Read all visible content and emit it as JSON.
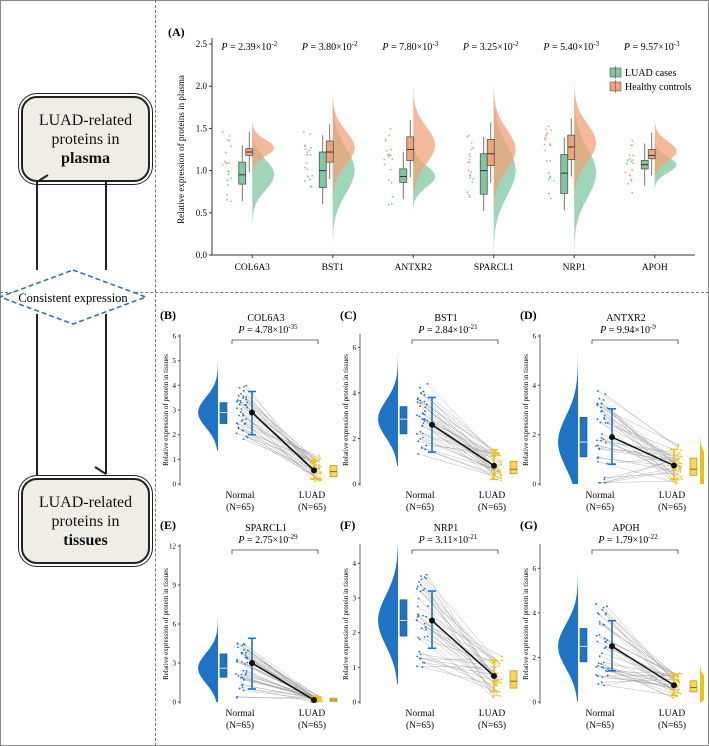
{
  "flow": {
    "plasma_box": {
      "line1": "LUAD-related",
      "line2": "proteins in",
      "bold": "plasma"
    },
    "tissue_box": {
      "line1": "LUAD-related",
      "line2": "proteins in",
      "bold": "tissues"
    },
    "diamond_label": "Consistent expression"
  },
  "colors": {
    "luad_green": "#7fc7a2",
    "healthy_orange": "#f0a27a",
    "normal_blue": "#1f73c4",
    "luad_yellow": "#f2c10f",
    "line_gray": "#9a9a9a"
  },
  "chart_data": [
    {
      "panel": "(A)",
      "type": "raincloud",
      "ylabel": "Relative  expression  of  proteins in plasma",
      "ylim": [
        0,
        2.5
      ],
      "yticks": [
        "0.0",
        "0.5",
        "1.0",
        "1.5",
        "2.0",
        "2.5"
      ],
      "categories": [
        "COL6A3",
        "BST1",
        "ANTXR2",
        "SPARCL1",
        "NRP1",
        "APOH"
      ],
      "pvalues": [
        {
          "base": "2.39",
          "exp": "-2"
        },
        {
          "base": "3.80",
          "exp": "-2"
        },
        {
          "base": "7.80",
          "exp": "-3"
        },
        {
          "base": "3.25",
          "exp": "-2"
        },
        {
          "base": "5.40",
          "exp": "-3"
        },
        {
          "base": "9.57",
          "exp": "-3"
        }
      ],
      "series": [
        {
          "name": "LUAD cases",
          "median": [
            0.95,
            1.0,
            0.93,
            1.0,
            0.97,
            1.07
          ],
          "q1": [
            0.84,
            0.8,
            0.86,
            0.72,
            0.73,
            1.02
          ],
          "q3": [
            1.1,
            1.22,
            1.02,
            1.2,
            1.19,
            1.12
          ]
        },
        {
          "name": "Healthy controls",
          "median": [
            1.22,
            1.22,
            1.25,
            1.2,
            1.28,
            1.18
          ],
          "q1": [
            1.18,
            1.1,
            1.12,
            1.06,
            1.13,
            1.14
          ],
          "q3": [
            1.26,
            1.35,
            1.4,
            1.37,
            1.42,
            1.25
          ]
        }
      ],
      "legend": "top-right"
    },
    {
      "panel": "(B)",
      "type": "paired-raincloud",
      "title": "COL6A3",
      "p": {
        "base": "4.78",
        "exp": "-35"
      },
      "ylabel": "Relative  expression  of  protein in tissues",
      "ylim": [
        0,
        6
      ],
      "yticks": [
        "0",
        "1",
        "2",
        "3",
        "4",
        "5",
        "6"
      ],
      "groups": [
        {
          "name": "Normal",
          "n": "(N=65)",
          "median": 2.9,
          "q1": 2.45,
          "q3": 3.3,
          "mean": 2.9,
          "sd_low": 2.0,
          "sd_high": 3.75
        },
        {
          "name": "LUAD",
          "n": "(N=65)",
          "median": 0.5,
          "q1": 0.3,
          "q3": 0.75,
          "mean": 0.55,
          "sd_low": 0.2,
          "sd_high": 0.95
        }
      ]
    },
    {
      "panel": "(C)",
      "type": "paired-raincloud",
      "title": "BST1",
      "p": {
        "base": "2.84",
        "exp": "-21"
      },
      "ylabel": "Relative  expression  of  protein in tissues",
      "ylim": [
        0,
        6.5
      ],
      "yticks": [
        "0",
        "2",
        "4",
        "6"
      ],
      "groups": [
        {
          "name": "Normal",
          "n": "(N=65)",
          "median": 2.85,
          "q1": 2.2,
          "q3": 3.4,
          "mean": 2.6,
          "sd_low": 1.4,
          "sd_high": 3.8
        },
        {
          "name": "LUAD",
          "n": "(N=65)",
          "median": 0.65,
          "q1": 0.45,
          "q3": 1.0,
          "mean": 0.8,
          "sd_low": 0.2,
          "sd_high": 1.5
        }
      ]
    },
    {
      "panel": "(D)",
      "type": "paired-raincloud",
      "title": "ANTXR2",
      "p": {
        "base": "9.94",
        "exp": "-9"
      },
      "ylabel": "Relative  expression  of  protein in tissues",
      "ylim": [
        0,
        6
      ],
      "yticks": [
        "0",
        "2",
        "4",
        "6"
      ],
      "groups": [
        {
          "name": "Normal",
          "n": "(N=65)",
          "median": 1.7,
          "q1": 1.1,
          "q3": 2.7,
          "mean": 1.9,
          "sd_low": 0.8,
          "sd_high": 3.05
        },
        {
          "name": "LUAD",
          "n": "(N=65)",
          "median": 0.6,
          "q1": 0.35,
          "q3": 1.05,
          "mean": 0.75,
          "sd_low": 0.2,
          "sd_high": 1.4
        }
      ]
    },
    {
      "panel": "(E)",
      "type": "paired-raincloud",
      "title": "SPARCL1",
      "p": {
        "base": "2.75",
        "exp": "-29"
      },
      "ylabel": "Relative  expression  of  protein in tissues",
      "ylim": [
        0,
        12
      ],
      "yticks": [
        "0",
        "3",
        "6",
        "9",
        "12"
      ],
      "groups": [
        {
          "name": "Normal",
          "n": "(N=65)",
          "median": 2.6,
          "q1": 1.9,
          "q3": 3.7,
          "mean": 3.0,
          "sd_low": 1.0,
          "sd_high": 4.9
        },
        {
          "name": "LUAD",
          "n": "(N=65)",
          "median": 0.15,
          "q1": 0.05,
          "q3": 0.3,
          "mean": 0.15,
          "sd_low": 0.0,
          "sd_high": 0.35
        }
      ]
    },
    {
      "panel": "(F)",
      "type": "paired-raincloud",
      "title": "NRP1",
      "p": {
        "base": "3.11",
        "exp": "-21"
      },
      "ylabel": "Relative  expression  of  protein in tissues",
      "ylim": [
        0,
        4.5
      ],
      "yticks": [
        "0",
        "1",
        "2",
        "3",
        "4"
      ],
      "groups": [
        {
          "name": "Normal",
          "n": "(N=65)",
          "median": 2.35,
          "q1": 1.9,
          "q3": 2.95,
          "mean": 2.35,
          "sd_low": 1.55,
          "sd_high": 3.2
        },
        {
          "name": "LUAD",
          "n": "(N=65)",
          "median": 0.6,
          "q1": 0.4,
          "q3": 0.9,
          "mean": 0.75,
          "sd_low": 0.3,
          "sd_high": 1.2
        }
      ]
    },
    {
      "panel": "(G)",
      "type": "paired-raincloud",
      "title": "APOH",
      "p": {
        "base": "1.79",
        "exp": "-22"
      },
      "ylabel": "Relative  expression  of  protein in tissues",
      "ylim": [
        0,
        7
      ],
      "yticks": [
        "0",
        "2",
        "4",
        "6"
      ],
      "groups": [
        {
          "name": "Normal",
          "n": "(N=65)",
          "median": 2.5,
          "q1": 1.8,
          "q3": 3.3,
          "mean": 2.5,
          "sd_low": 1.4,
          "sd_high": 3.65
        },
        {
          "name": "LUAD",
          "n": "(N=65)",
          "median": 0.65,
          "q1": 0.45,
          "q3": 0.95,
          "mean": 0.75,
          "sd_low": 0.3,
          "sd_high": 1.2
        }
      ]
    }
  ]
}
